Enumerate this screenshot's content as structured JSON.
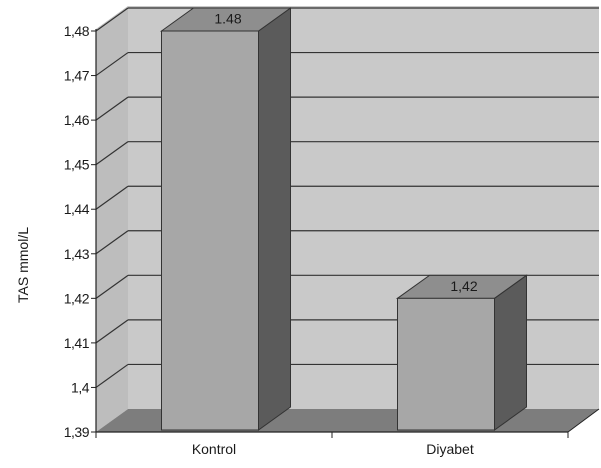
{
  "chart_data": {
    "type": "bar",
    "three_d": true,
    "categories": [
      "Kontrol",
      "Diyabet"
    ],
    "values": [
      1.48,
      1.42
    ],
    "data_labels": [
      "1.48",
      "1,42"
    ],
    "ylabel": "TAS mmol/L",
    "ylim": [
      1.39,
      1.48
    ],
    "yticks": [
      1.39,
      1.4,
      1.41,
      1.42,
      1.43,
      1.44,
      1.45,
      1.46,
      1.47,
      1.48
    ],
    "ytick_labels": [
      "1,39",
      "1,4",
      "1,41",
      "1,42",
      "1,43",
      "1,44",
      "1,45",
      "1,46",
      "1,47",
      "1,48"
    ],
    "grid": true,
    "colors": {
      "back_wall": "#c9c9c9",
      "side_wall": "#bdbdbd",
      "floor": "#7d7d7d",
      "grid": "#333333",
      "bar_front": "#a7a7a7",
      "bar_side": "#5b5b5b",
      "bar_top": "#8e8e8e"
    }
  }
}
